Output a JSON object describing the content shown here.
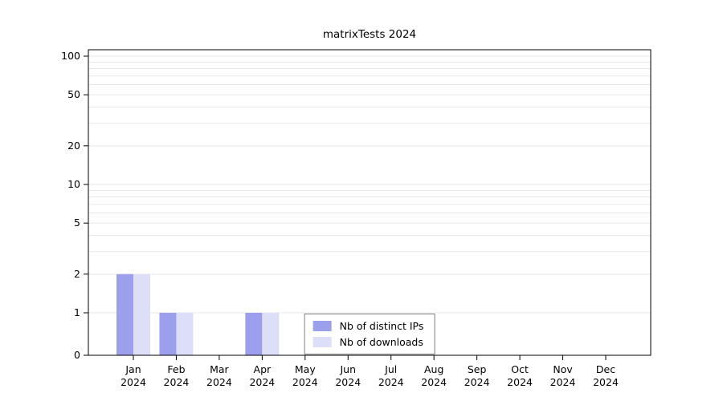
{
  "chart_data": {
    "type": "bar",
    "title": "matrixTests 2024",
    "categories": [
      "Jan",
      "Feb",
      "Mar",
      "Apr",
      "May",
      "Jun",
      "Jul",
      "Aug",
      "Sep",
      "Oct",
      "Nov",
      "Dec"
    ],
    "x_tick_sublabel": "2024",
    "series": [
      {
        "name": "Nb of distinct IPs",
        "color": "#9b9fec",
        "values": [
          2,
          1,
          0,
          1,
          0,
          0,
          0,
          0,
          0,
          0,
          0,
          0
        ]
      },
      {
        "name": "Nb of downloads",
        "color": "#dddef8",
        "values": [
          2,
          1,
          0,
          1,
          0,
          0,
          0,
          0,
          0,
          0,
          0,
          0
        ]
      }
    ],
    "y_axis": {
      "scale": "symlog",
      "ticks": [
        0,
        1,
        2,
        5,
        10,
        20,
        50,
        100
      ],
      "minor_gridlines": [
        1,
        2,
        3,
        4,
        5,
        6,
        7,
        8,
        9,
        10,
        20,
        30,
        40,
        50,
        60,
        70,
        80,
        90,
        100
      ],
      "range": [
        0,
        100
      ]
    },
    "legend": {
      "position": "inside-bottom-center",
      "labels": [
        "Nb of distinct IPs",
        "Nb of downloads"
      ]
    },
    "grid": true,
    "colors": {
      "gridline": "#e8e8e8",
      "axis": "#000000",
      "background": "#ffffff"
    }
  }
}
